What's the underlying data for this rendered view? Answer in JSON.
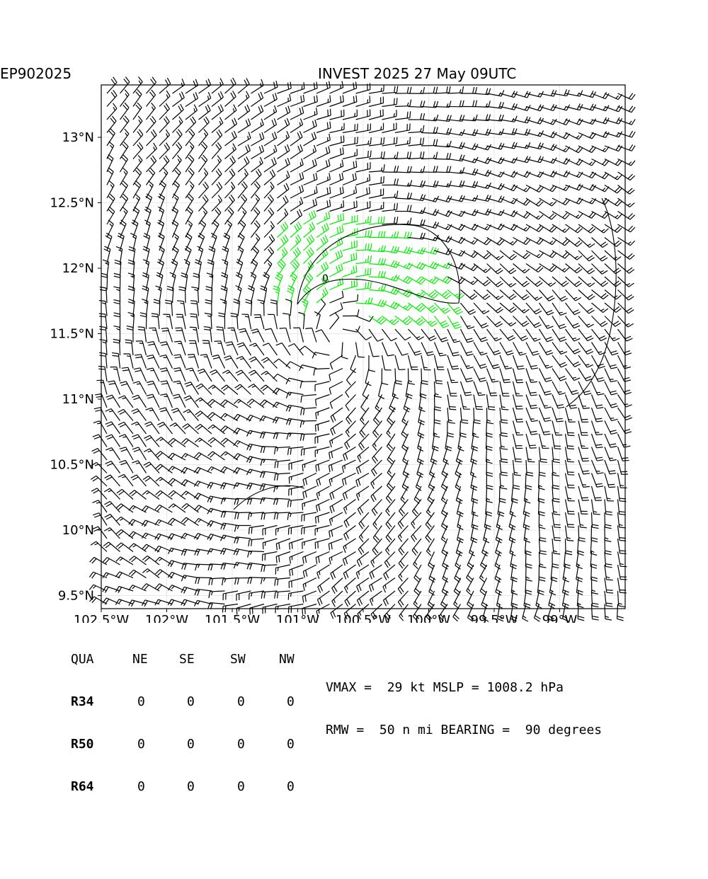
{
  "title_left": "EP902025",
  "title_right": "INVEST 2025 27 May 09UTC",
  "chart_data": {
    "type": "wind_barb_map",
    "x_ticks": [
      "102.5°W",
      "102°W",
      "101.5°W",
      "101°W",
      "100.5°W",
      "100°W",
      "99.5°W",
      "99°W"
    ],
    "x_tick_values": [
      -102.5,
      -102.0,
      -101.5,
      -101.0,
      -100.5,
      -100.0,
      -99.5,
      -99.0
    ],
    "y_ticks": [
      "9.5°N",
      "10°N",
      "10.5°N",
      "11°N",
      "11.5°N",
      "12°N",
      "12.5°N",
      "13°N"
    ],
    "y_tick_values": [
      9.5,
      10.0,
      10.5,
      11.0,
      11.5,
      12.0,
      12.5,
      13.0
    ],
    "xlim": [
      -102.5,
      -98.5
    ],
    "ylim": [
      9.4,
      13.4
    ],
    "center": {
      "lon": -100.7,
      "lat": 11.45
    },
    "contour_label": "0",
    "highlight_color": "#00ee00",
    "barb_color": "#000000",
    "grid": true
  },
  "table": {
    "header": [
      "QUA",
      "NE",
      "SE",
      "SW",
      "NW"
    ],
    "rows": [
      {
        "label": "R34",
        "values": [
          "0",
          "0",
          "0",
          "0"
        ]
      },
      {
        "label": "R50",
        "values": [
          "0",
          "0",
          "0",
          "0"
        ]
      },
      {
        "label": "R64",
        "values": [
          "0",
          "0",
          "0",
          "0"
        ]
      }
    ]
  },
  "stats": {
    "line1": "VMAX =  29 kt MSLP = 1008.2 hPa",
    "line2": "RMW =  50 n mi BEARING =  90 degrees"
  }
}
